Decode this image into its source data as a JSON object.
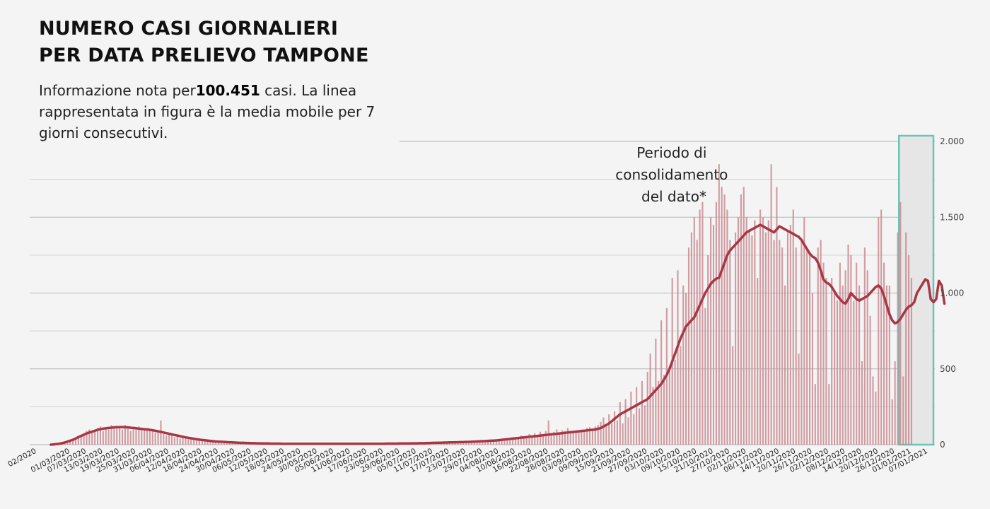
{
  "header": {
    "title_line1": "NUMERO CASI GIORNALIERI",
    "title_line2": "PER DATA PRELIEVO TAMPONE",
    "subtitle_prefix": "Informazione nota per",
    "subtitle_total": "100.451",
    "subtitle_suffix": " casi. La linea rappresentata in figura è la media mobile per 7 giorni consecutivi."
  },
  "colors": {
    "bar": "#c98c92",
    "line": "#a83746",
    "grid": "#bdbdbd",
    "highlight_border": "#6cc3b8",
    "highlight_fill": "#e6e6e6"
  },
  "chart_data": {
    "type": "bar",
    "x_start": "2020-02-24",
    "x_end": "2021-01-10",
    "first_label": "02/2020",
    "tick_labels": [
      "01/03/2020",
      "07/03/2020",
      "13/03/2020",
      "19/03/2020",
      "25/03/2020",
      "31/03/2020",
      "06/04/2020",
      "12/04/2020",
      "18/04/2020",
      "24/04/2020",
      "30/04/2020",
      "06/05/2020",
      "12/05/2020",
      "18/05/2020",
      "24/05/2020",
      "30/05/2020",
      "05/06/2020",
      "11/06/2020",
      "17/06/2020",
      "23/06/2020",
      "29/06/2020",
      "05/07/2020",
      "11/07/2020",
      "17/07/2020",
      "23/07/2020",
      "29/07/2020",
      "04/08/2020",
      "10/08/2020",
      "16/08/2020",
      "22/08/2020",
      "28/08/2020",
      "03/09/2020",
      "09/09/2020",
      "15/09/2020",
      "21/09/2020",
      "27/09/2020",
      "03/10/2020",
      "09/10/2020",
      "15/10/2020",
      "21/10/2020",
      "27/10/2020",
      "02/11/2020",
      "08/11/2020",
      "14/11/2020",
      "20/11/2020",
      "26/11/2020",
      "02/12/2020",
      "08/12/2020",
      "14/12/2020",
      "20/12/2020",
      "26/12/2020",
      "01/01/2021",
      "07/01/2021"
    ],
    "ylim": [
      0,
      2000
    ],
    "y_ticks": [
      0,
      500,
      1000,
      1500,
      2000
    ],
    "y_tick_labels": [
      "0",
      "500",
      "1.000",
      "1.500",
      "2.000"
    ],
    "series": [
      {
        "values": [
          0,
          2,
          4,
          6,
          10,
          14,
          20,
          26,
          32,
          40,
          50,
          58,
          66,
          74,
          80,
          86,
          92,
          98,
          102,
          106,
          108,
          110,
          112,
          114,
          115,
          116,
          116,
          115,
          114,
          112,
          110,
          108,
          106,
          104,
          102,
          100,
          98,
          95,
          92,
          88,
          84,
          80,
          76,
          72,
          68,
          64,
          60,
          56,
          52,
          48,
          45,
          42,
          39,
          36,
          33,
          31,
          29,
          27,
          25,
          23,
          21,
          20,
          19,
          18,
          17,
          16,
          15,
          14,
          13,
          12,
          12,
          11,
          11,
          10,
          10,
          9,
          9,
          8,
          8,
          8,
          7,
          7,
          7,
          7,
          6,
          6,
          6,
          6,
          6,
          6,
          6,
          6,
          6,
          6,
          6,
          6,
          6,
          6,
          6,
          6,
          6,
          6,
          6,
          6,
          6,
          6,
          6,
          6,
          6,
          6,
          6,
          6,
          6,
          6,
          6,
          6,
          6,
          6,
          6,
          6,
          6,
          6,
          7,
          7,
          7,
          7,
          7,
          8,
          8,
          8,
          8,
          9,
          9,
          9,
          10,
          10,
          10,
          11,
          11,
          12,
          12,
          13,
          13,
          14,
          14,
          15,
          15,
          16,
          16,
          17,
          17,
          18,
          18,
          19,
          20,
          21,
          22,
          23,
          24,
          25,
          26,
          27,
          28,
          30,
          32,
          34,
          36,
          38,
          40,
          42,
          44,
          46,
          48,
          50,
          52,
          54,
          56,
          58,
          60,
          62,
          64,
          66,
          68,
          70,
          72,
          74,
          76,
          78,
          80,
          82,
          84,
          86,
          88,
          90,
          92,
          94,
          96,
          98,
          100,
          105,
          110,
          120,
          130,
          140,
          155,
          170,
          185,
          200,
          210,
          220,
          230,
          240,
          250,
          260,
          270,
          280,
          290,
          300,
          320,
          340,
          360,
          380,
          400,
          430,
          460,
          500,
          550,
          600,
          650,
          700,
          740,
          780,
          800,
          820,
          840,
          880,
          920,
          960,
          1000,
          1030,
          1060,
          1080,
          1095,
          1100,
          1150,
          1200,
          1250,
          1280,
          1300,
          1320,
          1340,
          1360,
          1380,
          1400,
          1410,
          1420,
          1430,
          1440,
          1450,
          1440,
          1430,
          1420,
          1410,
          1400,
          1420,
          1440,
          1430,
          1420,
          1410,
          1400,
          1390,
          1380,
          1370,
          1350,
          1320,
          1290,
          1260,
          1240,
          1230,
          1200,
          1150,
          1090,
          1070,
          1060,
          1040,
          1010,
          980,
          960,
          940,
          930,
          960,
          1000,
          980,
          960,
          950,
          960,
          970,
          980,
          1000,
          1020,
          1040,
          1050,
          1030,
          980,
          920,
          860,
          820,
          800,
          810,
          830,
          860,
          890,
          910,
          920,
          940,
          1000,
          1030,
          1060,
          1090,
          1080,
          960,
          940,
          960,
          1080,
          1050,
          930
        ],
        "bars": [
          0,
          2,
          3,
          8,
          12,
          20,
          18,
          25,
          40,
          30,
          60,
          55,
          70,
          90,
          100,
          85,
          95,
          110,
          120,
          90,
          105,
          100,
          130,
          110,
          120,
          115,
          100,
          130,
          115,
          90,
          110,
          100,
          120,
          95,
          100,
          110,
          105,
          90,
          80,
          95,
          160,
          70,
          60,
          80,
          75,
          50,
          65,
          40,
          55,
          50,
          45,
          40,
          38,
          35,
          30,
          28,
          26,
          24,
          22,
          20,
          22,
          18,
          19,
          17,
          16,
          15,
          14,
          15,
          13,
          12,
          12,
          11,
          11,
          10,
          10,
          9,
          9,
          8,
          8,
          8,
          7,
          7,
          7,
          7,
          6,
          6,
          6,
          6,
          6,
          6,
          6,
          6,
          6,
          6,
          6,
          6,
          6,
          6,
          6,
          6,
          6,
          6,
          6,
          6,
          6,
          6,
          6,
          6,
          6,
          6,
          6,
          6,
          6,
          6,
          6,
          6,
          6,
          6,
          6,
          6,
          6,
          6,
          7,
          7,
          7,
          7,
          7,
          8,
          8,
          8,
          8,
          9,
          9,
          9,
          10,
          10,
          10,
          11,
          11,
          12,
          12,
          13,
          13,
          14,
          14,
          15,
          15,
          16,
          16,
          17,
          17,
          18,
          18,
          19,
          20,
          21,
          22,
          23,
          24,
          25,
          26,
          27,
          28,
          30,
          32,
          34,
          36,
          38,
          40,
          45,
          42,
          60,
          48,
          55,
          70,
          50,
          75,
          60,
          85,
          70,
          90,
          160,
          75,
          85,
          100,
          80,
          95,
          90,
          110,
          85,
          80,
          95,
          90,
          100,
          95,
          110,
          115,
          105,
          120,
          130,
          150,
          180,
          120,
          200,
          140,
          220,
          160,
          280,
          140,
          300,
          180,
          350,
          200,
          380,
          240,
          420,
          260,
          480,
          600,
          380,
          700,
          420,
          820,
          460,
          900,
          520,
          1100,
          560,
          1150,
          650,
          1050,
          1000,
          1300,
          1400,
          1500,
          1350,
          1550,
          1600,
          900,
          1250,
          1500,
          1450,
          1600,
          1850,
          1700,
          1650,
          1550,
          1350,
          650,
          1400,
          1500,
          1650,
          1700,
          1500,
          1420,
          1380,
          1480,
          1100,
          1550,
          1500,
          1400,
          1480,
          1850,
          1350,
          1700,
          1350,
          1300,
          1050,
          1400,
          1450,
          1550,
          1300,
          600,
          1350,
          1500,
          1280,
          1250,
          1000,
          400,
          1300,
          1350,
          1200,
          1100,
          400,
          1100,
          1000,
          950,
          1200,
          1050,
          1150,
          1320,
          1250,
          950,
          1200,
          1050,
          550,
          1300,
          1150,
          850,
          450,
          350,
          1500,
          1550,
          1200,
          1050,
          1050,
          300,
          550,
          1400,
          1600,
          450,
          1400,
          1250,
          1100
        ]
      }
    ],
    "annotation": "Periodo di consolidamento del dato*",
    "highlight_range": [
      "2020-12-31",
      "2021-01-10"
    ],
    "grid": true
  }
}
